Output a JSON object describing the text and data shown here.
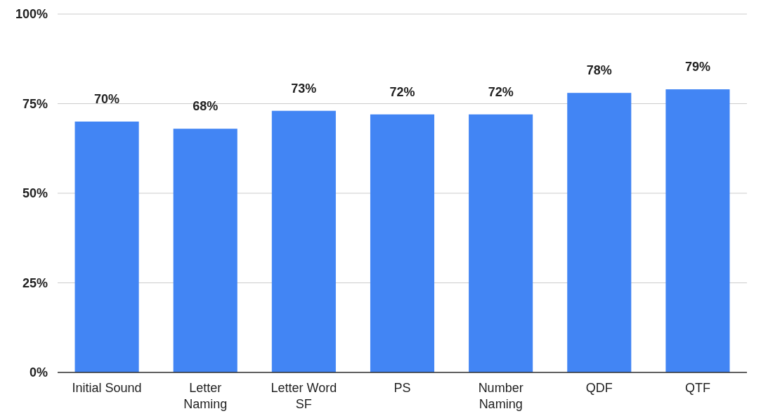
{
  "chart_data": {
    "type": "bar",
    "categories": [
      "Initial Sound",
      "Letter\nNaming",
      "Letter Word\nSF",
      "PS",
      "Number\nNaming",
      "QDF",
      "QTF"
    ],
    "values": [
      70,
      68,
      73,
      72,
      72,
      78,
      79
    ],
    "value_labels": [
      "70%",
      "68%",
      "73%",
      "72%",
      "72%",
      "78%",
      "79%"
    ],
    "color": "#4285f4",
    "ylim": [
      0,
      100
    ],
    "yticks": [
      {
        "value": 0,
        "label": "0%"
      },
      {
        "value": 25,
        "label": "25%"
      },
      {
        "value": 50,
        "label": "50%"
      },
      {
        "value": 75,
        "label": "75%"
      },
      {
        "value": 100,
        "label": "100%"
      }
    ],
    "grid": "y"
  }
}
